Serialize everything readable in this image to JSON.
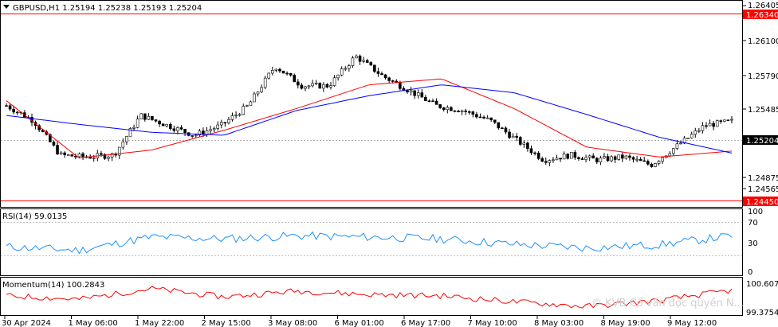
{
  "header": {
    "symbol_info": "GBPUSD,H1  1.25194 1.25238 1.25193 1.25204",
    "rsi_label": "RSI(14) 59.0135",
    "momentum_label": "Momentum(14) 100.2843",
    "watermark": "© KVB Cổ vấn độc quyền N..."
  },
  "chart_data": [
    {
      "type": "candlestick",
      "title": "GBPUSD,H1",
      "ohlc_last": {
        "open": 1.25194,
        "high": 1.25238,
        "low": 1.25193,
        "close": 1.25204
      },
      "y_ticks": [
        "1.26405",
        "1.26100",
        "1.25790",
        "1.25485",
        "1.24875",
        "1.24565"
      ],
      "ylim": [
        1.24384,
        1.26411
      ],
      "price_lines": [
        {
          "value": 1.2634,
          "label": "1.26340",
          "color": "#ff0000"
        },
        {
          "value": 1.2445,
          "label": "1.24450",
          "color": "#ff0000"
        }
      ],
      "current_price": {
        "value": 1.25204,
        "label": "1.25204"
      },
      "x_ticks": [
        "30 Apr 2024",
        "1 May 06:00",
        "1 May 22:00",
        "2 May 15:00",
        "3 May 08:00",
        "6 May 01:00",
        "6 May 17:00",
        "7 May 10:00",
        "8 May 03:00",
        "8 May 19:00",
        "9 May 12:00"
      ],
      "moving_averages": [
        {
          "color": "#ff0000",
          "values_at_ticks": [
            1.2545,
            1.2487,
            1.2495,
            1.2515,
            1.2537,
            1.2561,
            1.2567,
            1.2537,
            1.2498,
            1.2488,
            1.2494
          ]
        },
        {
          "color": "#0000ff",
          "values_at_ticks": [
            1.253,
            1.2521,
            1.2513,
            1.251,
            1.2535,
            1.255,
            1.2561,
            1.2553,
            1.2531,
            1.2508,
            1.2492
          ]
        }
      ]
    },
    {
      "type": "line",
      "title": "RSI(14) 59.0135",
      "y_ticks": [
        "100",
        "70",
        "30",
        "0"
      ],
      "levels": [
        70,
        30
      ],
      "ylim": [
        0,
        100
      ],
      "series": [
        {
          "color": "#1e90ff",
          "values_at_ticks": [
            42,
            36,
            58,
            55,
            60,
            58,
            55,
            46,
            40,
            45,
            60
          ]
        }
      ]
    },
    {
      "type": "line",
      "title": "Momentum(14) 100.2843",
      "y_ticks": [
        "100.6074",
        "99.3754"
      ],
      "ylim": [
        99.3754,
        100.6074
      ],
      "series": [
        {
          "color": "#ff0000",
          "values_at_ticks": [
            100.05,
            99.9,
            100.35,
            100.0,
            100.25,
            100.1,
            100.05,
            99.8,
            99.6,
            99.85,
            100.28
          ]
        }
      ]
    }
  ]
}
